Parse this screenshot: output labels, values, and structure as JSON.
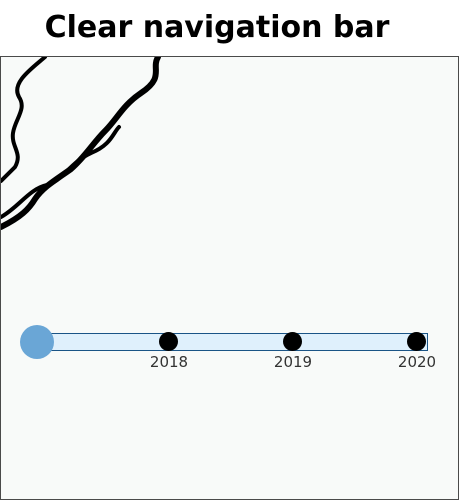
{
  "title": "Clear navigation bar",
  "colors": {
    "panel_background": "#f8faf9",
    "track_fill": "#dff0fc",
    "track_border": "#1a5486",
    "handle": "#6aa6d6",
    "stop": "#000000"
  },
  "timeline": {
    "handle_position": 0,
    "stops": [
      {
        "label": "2018"
      },
      {
        "label": "2019"
      },
      {
        "label": "2020"
      }
    ]
  }
}
